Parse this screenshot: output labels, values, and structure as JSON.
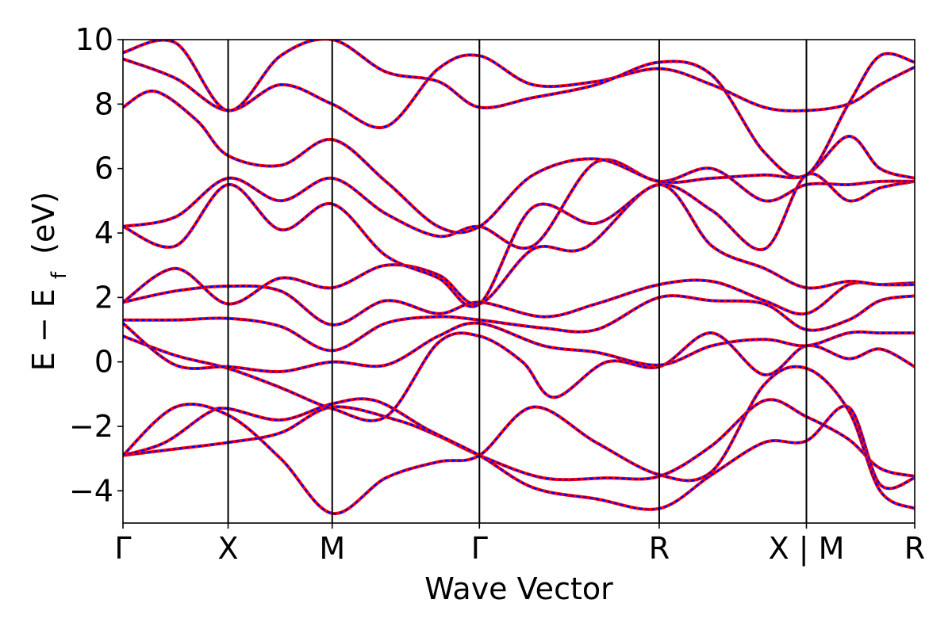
{
  "chart_data": {
    "type": "line",
    "title": "",
    "xlabel": "Wave Vector",
    "ylabel": "E − E",
    "ylabel_sub": "f",
    "ylabel_unit": "(eV)",
    "ylim": [
      -5,
      10
    ],
    "yticks": [
      -4,
      -2,
      0,
      2,
      4,
      6,
      8,
      10
    ],
    "ytick_labels": [
      "−4",
      "−2",
      "0",
      "2",
      "4",
      "6",
      "8",
      "10"
    ],
    "xlim": [
      0,
      7.53
    ],
    "high_symmetry_points": [
      {
        "label": "Γ",
        "x": 0
      },
      {
        "label": "X",
        "x": 1.0
      },
      {
        "label": "M",
        "x": 1.99
      },
      {
        "label": "Γ",
        "x": 3.39
      },
      {
        "label": "R",
        "x": 5.1
      },
      {
        "label": "X | M",
        "x": 6.5
      },
      {
        "label": "R",
        "x": 7.53
      }
    ],
    "segment_colors": {
      "red": "#ff0000",
      "blue": "#0000ff"
    },
    "series": [
      {
        "values": [
          [
            0,
            -2.9
          ],
          [
            0.5,
            -2.7
          ],
          [
            1.0,
            -2.5
          ],
          [
            1.5,
            -2.2
          ],
          [
            1.99,
            -1.4
          ],
          [
            2.6,
            -1.8
          ],
          [
            3.0,
            -2.3
          ],
          [
            3.39,
            -2.9
          ],
          [
            4.0,
            -3.6
          ],
          [
            4.6,
            -3.6
          ],
          [
            5.1,
            -3.55
          ],
          [
            5.6,
            -2.6
          ],
          [
            6.1,
            -1.2
          ],
          [
            6.5,
            -1.7
          ],
          [
            6.9,
            -2.4
          ],
          [
            7.2,
            -3.3
          ],
          [
            7.53,
            -3.55
          ]
        ]
      },
      {
        "values": [
          [
            0,
            -2.9
          ],
          [
            0.4,
            -2.5
          ],
          [
            0.8,
            -1.6
          ],
          [
            1.0,
            -1.45
          ],
          [
            1.5,
            -1.8
          ],
          [
            1.99,
            -1.3
          ],
          [
            2.4,
            -1.2
          ],
          [
            2.9,
            -2.1
          ],
          [
            3.39,
            -2.9
          ],
          [
            3.9,
            -3.9
          ],
          [
            4.5,
            -4.25
          ],
          [
            5.1,
            -4.55
          ],
          [
            5.6,
            -3.5
          ],
          [
            6.1,
            -2.5
          ],
          [
            6.5,
            -2.45
          ],
          [
            6.9,
            -1.4
          ],
          [
            7.2,
            -3.8
          ],
          [
            7.53,
            -3.6
          ]
        ]
      },
      {
        "values": [
          [
            0,
            -2.9
          ],
          [
            0.5,
            -1.4
          ],
          [
            1.0,
            -1.65
          ],
          [
            1.5,
            -3.0
          ],
          [
            1.99,
            -4.7
          ],
          [
            2.5,
            -3.6
          ],
          [
            3.0,
            -3.1
          ],
          [
            3.39,
            -2.9
          ],
          [
            3.9,
            -1.4
          ],
          [
            4.5,
            -2.5
          ],
          [
            5.1,
            -3.5
          ],
          [
            5.6,
            -3.4
          ],
          [
            6.1,
            -0.7
          ],
          [
            6.5,
            -0.2
          ],
          [
            6.9,
            -1.5
          ],
          [
            7.2,
            -4.0
          ],
          [
            7.53,
            -4.55
          ]
        ]
      },
      {
        "values": [
          [
            0,
            0.8
          ],
          [
            0.5,
            0.2
          ],
          [
            1.0,
            -0.2
          ],
          [
            1.5,
            -0.8
          ],
          [
            1.99,
            -1.45
          ],
          [
            2.5,
            -1.7
          ],
          [
            3.0,
            0.6
          ],
          [
            3.39,
            0.8
          ],
          [
            3.8,
            0.0
          ],
          [
            4.1,
            -1.1
          ],
          [
            4.6,
            0.0
          ],
          [
            5.1,
            -0.15
          ],
          [
            5.6,
            0.9
          ],
          [
            6.1,
            -0.4
          ],
          [
            6.5,
            0.5
          ],
          [
            6.9,
            0.1
          ],
          [
            7.2,
            0.4
          ],
          [
            7.53,
            -0.15
          ]
        ]
      },
      {
        "values": [
          [
            0,
            1.2
          ],
          [
            0.5,
            -0.1
          ],
          [
            1.0,
            -0.15
          ],
          [
            1.5,
            -0.3
          ],
          [
            1.99,
            0.0
          ],
          [
            2.5,
            -0.1
          ],
          [
            3.0,
            0.8
          ],
          [
            3.39,
            1.2
          ],
          [
            4.0,
            0.5
          ],
          [
            4.5,
            0.3
          ],
          [
            5.1,
            -0.1
          ],
          [
            5.6,
            0.5
          ],
          [
            6.1,
            0.7
          ],
          [
            6.5,
            0.5
          ],
          [
            6.9,
            0.9
          ],
          [
            7.2,
            0.9
          ],
          [
            7.53,
            0.9
          ]
        ]
      },
      {
        "values": [
          [
            0,
            1.3
          ],
          [
            0.5,
            1.3
          ],
          [
            1.0,
            1.35
          ],
          [
            1.5,
            1.1
          ],
          [
            1.99,
            0.35
          ],
          [
            2.5,
            1.2
          ],
          [
            3.0,
            1.4
          ],
          [
            3.39,
            1.3
          ],
          [
            4.0,
            1.05
          ],
          [
            4.5,
            1.0
          ],
          [
            5.1,
            2.0
          ],
          [
            5.6,
            1.9
          ],
          [
            6.1,
            1.8
          ],
          [
            6.5,
            1.0
          ],
          [
            6.9,
            1.3
          ],
          [
            7.2,
            1.9
          ],
          [
            7.53,
            2.05
          ]
        ]
      },
      {
        "values": [
          [
            0,
            1.85
          ],
          [
            0.5,
            2.2
          ],
          [
            1.0,
            2.35
          ],
          [
            1.5,
            2.2
          ],
          [
            1.99,
            1.15
          ],
          [
            2.5,
            1.9
          ],
          [
            3.0,
            1.5
          ],
          [
            3.39,
            1.85
          ],
          [
            4.0,
            1.4
          ],
          [
            4.5,
            1.8
          ],
          [
            5.1,
            2.4
          ],
          [
            5.6,
            2.5
          ],
          [
            6.1,
            1.9
          ],
          [
            6.5,
            1.5
          ],
          [
            6.9,
            2.4
          ],
          [
            7.2,
            2.4
          ],
          [
            7.53,
            2.45
          ]
        ]
      },
      {
        "values": [
          [
            0,
            1.85
          ],
          [
            0.5,
            2.9
          ],
          [
            1.0,
            1.8
          ],
          [
            1.5,
            2.6
          ],
          [
            1.99,
            2.3
          ],
          [
            2.5,
            3.0
          ],
          [
            3.0,
            2.7
          ],
          [
            3.39,
            1.8
          ],
          [
            3.9,
            3.5
          ],
          [
            4.4,
            3.55
          ],
          [
            5.1,
            5.5
          ],
          [
            5.6,
            3.6
          ],
          [
            6.1,
            2.9
          ],
          [
            6.5,
            2.3
          ],
          [
            6.9,
            2.5
          ],
          [
            7.2,
            2.4
          ],
          [
            7.53,
            2.4
          ]
        ]
      },
      {
        "values": [
          [
            0,
            4.2
          ],
          [
            0.5,
            3.6
          ],
          [
            1.0,
            5.5
          ],
          [
            1.5,
            4.1
          ],
          [
            1.99,
            4.9
          ],
          [
            2.5,
            3.3
          ],
          [
            3.0,
            2.6
          ],
          [
            3.39,
            1.8
          ],
          [
            3.9,
            4.8
          ],
          [
            4.5,
            4.3
          ],
          [
            5.1,
            5.5
          ],
          [
            5.6,
            4.7
          ],
          [
            6.1,
            3.5
          ],
          [
            6.5,
            5.8
          ],
          [
            6.9,
            5.0
          ],
          [
            7.2,
            5.4
          ],
          [
            7.53,
            5.6
          ]
        ]
      },
      {
        "values": [
          [
            0,
            4.2
          ],
          [
            0.5,
            4.5
          ],
          [
            1.0,
            5.7
          ],
          [
            1.5,
            5.0
          ],
          [
            1.99,
            5.7
          ],
          [
            2.5,
            4.6
          ],
          [
            3.0,
            3.9
          ],
          [
            3.39,
            4.2
          ],
          [
            3.9,
            3.6
          ],
          [
            4.5,
            6.2
          ],
          [
            5.1,
            5.6
          ],
          [
            5.6,
            6.0
          ],
          [
            6.1,
            5.0
          ],
          [
            6.5,
            5.5
          ],
          [
            6.9,
            5.5
          ],
          [
            7.2,
            5.6
          ],
          [
            7.53,
            5.6
          ]
        ]
      },
      {
        "values": [
          [
            0,
            7.9
          ],
          [
            0.3,
            8.4
          ],
          [
            0.7,
            7.5
          ],
          [
            1.0,
            6.4
          ],
          [
            1.5,
            6.1
          ],
          [
            1.99,
            6.9
          ],
          [
            2.5,
            5.6
          ],
          [
            3.0,
            4.2
          ],
          [
            3.39,
            4.2
          ],
          [
            3.9,
            5.8
          ],
          [
            4.5,
            6.3
          ],
          [
            5.1,
            5.6
          ],
          [
            5.6,
            5.7
          ],
          [
            6.1,
            5.8
          ],
          [
            6.5,
            5.8
          ],
          [
            6.9,
            7.0
          ],
          [
            7.2,
            6.0
          ],
          [
            7.53,
            5.7
          ]
        ]
      },
      {
        "values": [
          [
            0,
            9.4
          ],
          [
            0.5,
            8.8
          ],
          [
            1.0,
            7.8
          ],
          [
            1.5,
            8.6
          ],
          [
            1.99,
            8.0
          ],
          [
            2.5,
            7.3
          ],
          [
            3.0,
            9.1
          ],
          [
            3.39,
            9.5
          ],
          [
            3.9,
            8.6
          ],
          [
            4.5,
            8.7
          ],
          [
            5.1,
            9.1
          ],
          [
            5.6,
            8.6
          ],
          [
            6.1,
            7.9
          ],
          [
            6.5,
            7.8
          ],
          [
            6.9,
            8.0
          ],
          [
            7.2,
            8.6
          ],
          [
            7.53,
            9.15
          ]
        ]
      },
      {
        "values": [
          [
            0,
            9.6
          ],
          [
            0.5,
            9.9
          ],
          [
            1.0,
            7.8
          ],
          [
            1.5,
            9.5
          ],
          [
            1.99,
            10.0
          ],
          [
            2.5,
            9.0
          ],
          [
            3.0,
            8.7
          ],
          [
            3.39,
            7.9
          ],
          [
            3.9,
            8.2
          ],
          [
            4.5,
            8.6
          ],
          [
            5.1,
            9.3
          ],
          [
            5.6,
            8.9
          ],
          [
            6.1,
            6.5
          ],
          [
            6.5,
            5.8
          ],
          [
            6.9,
            8.0
          ],
          [
            7.2,
            9.5
          ],
          [
            7.53,
            9.3
          ]
        ]
      }
    ]
  }
}
